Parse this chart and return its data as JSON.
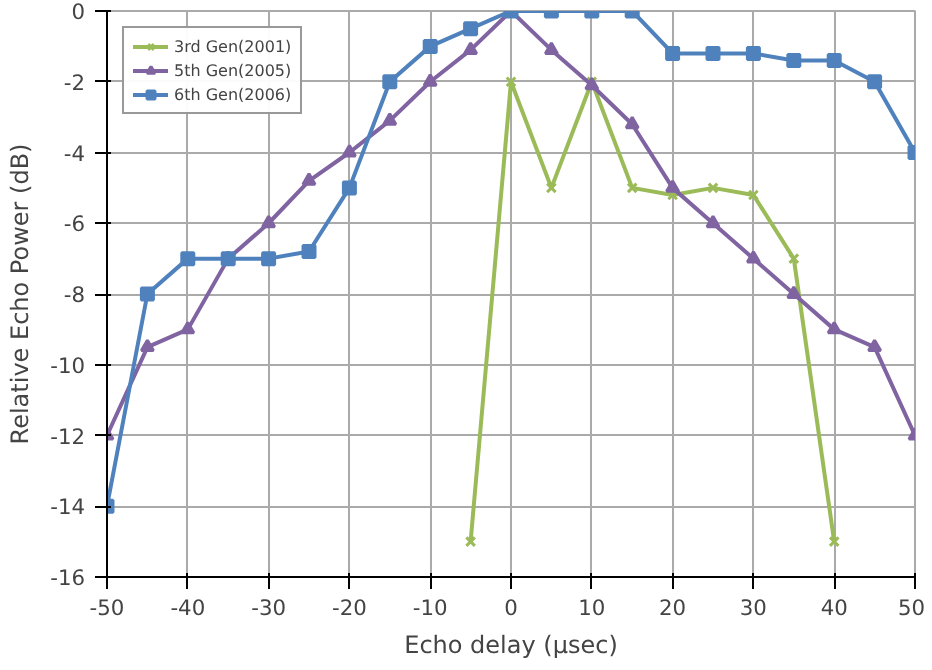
{
  "chart_data": {
    "type": "line",
    "xlabel": "Echo delay (μsec)",
    "ylabel": "Relative Echo Power (dB)",
    "xlim": [
      -50,
      50
    ],
    "ylim": [
      -16,
      0
    ],
    "xticks": [
      -50,
      -40,
      -30,
      -20,
      -10,
      0,
      10,
      20,
      30,
      40,
      50
    ],
    "yticks": [
      -16,
      -14,
      -12,
      -10,
      -8,
      -6,
      -4,
      -2,
      0
    ],
    "grid": true,
    "legend": "top left",
    "series": [
      {
        "name": "3rd Gen(2001)",
        "color": "#9bbb59",
        "marker": "cross",
        "x": [
          -5,
          0,
          5,
          10,
          15,
          20,
          25,
          30,
          35,
          40
        ],
        "values": [
          -15,
          -2,
          -5,
          -2,
          -5,
          -5.2,
          -5,
          -5.2,
          -7,
          -15
        ]
      },
      {
        "name": "5th Gen(2005)",
        "color": "#8064a2",
        "marker": "triangle",
        "x": [
          -50,
          -45,
          -40,
          -35,
          -30,
          -25,
          -20,
          -15,
          -10,
          -5,
          0,
          5,
          10,
          15,
          20,
          25,
          30,
          35,
          40,
          45,
          50
        ],
        "values": [
          -12,
          -9.5,
          -9,
          -7,
          -6,
          -4.8,
          -4,
          -3.1,
          -2,
          -1.1,
          0,
          -1.1,
          -2.1,
          -3.2,
          -5,
          -6,
          -7,
          -8,
          -9,
          -9.5,
          -12
        ]
      },
      {
        "name": "6th Gen(2006)",
        "color": "#4f81bd",
        "marker": "square",
        "x": [
          -50,
          -45,
          -40,
          -35,
          -30,
          -25,
          -20,
          -15,
          -10,
          -5,
          0,
          5,
          10,
          15,
          20,
          25,
          30,
          35,
          40,
          45,
          50
        ],
        "values": [
          -14,
          -8,
          -7,
          -7,
          -7,
          -6.8,
          -5,
          -2,
          -1,
          -0.5,
          0,
          0,
          0,
          0,
          -1.2,
          -1.2,
          -1.2,
          -1.4,
          -1.4,
          -2,
          -4
        ]
      }
    ]
  }
}
